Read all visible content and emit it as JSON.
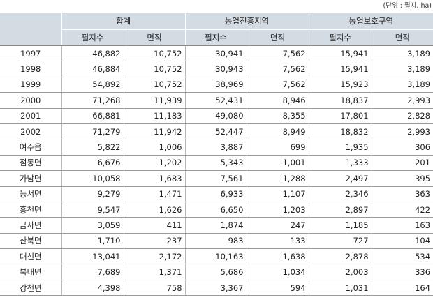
{
  "unit": "(단위 : 필지, ha)",
  "header": {
    "groups": [
      "합계",
      "농업진흥지역",
      "농업보호구역"
    ],
    "sub": [
      "필지수",
      "면적",
      "필지수",
      "면적",
      "필지수",
      "면적"
    ]
  },
  "rows": [
    {
      "label": "1997",
      "values": [
        "46,882",
        "10,752",
        "30,941",
        "7,562",
        "15,941",
        "3,189"
      ]
    },
    {
      "label": "1998",
      "values": [
        "46,884",
        "10,752",
        "30,943",
        "7,562",
        "15,941",
        "3,189"
      ]
    },
    {
      "label": "1999",
      "values": [
        "54,892",
        "10,752",
        "38,969",
        "7,562",
        "15,923",
        "3,189"
      ]
    },
    {
      "label": "2000",
      "values": [
        "71,268",
        "11,939",
        "52,431",
        "8,946",
        "18,837",
        "2,993"
      ]
    },
    {
      "label": "2001",
      "values": [
        "66,881",
        "11,183",
        "49,080",
        "8,355",
        "17,801",
        "2,828"
      ]
    },
    {
      "label": "2002",
      "values": [
        "71,279",
        "11,942",
        "52,447",
        "8,949",
        "18,832",
        "2,993"
      ]
    },
    {
      "label": "여주읍",
      "values": [
        "5,822",
        "1,006",
        "3,887",
        "699",
        "1,935",
        "306"
      ]
    },
    {
      "label": "점동면",
      "values": [
        "6,676",
        "1,202",
        "5,343",
        "1,001",
        "1,333",
        "201"
      ]
    },
    {
      "label": "가남면",
      "values": [
        "10,058",
        "1,683",
        "7,561",
        "1,288",
        "2,497",
        "395"
      ]
    },
    {
      "label": "능서면",
      "values": [
        "9,279",
        "1,471",
        "6,933",
        "1,107",
        "2,346",
        "363"
      ]
    },
    {
      "label": "흥천면",
      "values": [
        "9,547",
        "1,626",
        "6,650",
        "1,203",
        "2,897",
        "422"
      ]
    },
    {
      "label": "금사면",
      "values": [
        "3,059",
        "411",
        "1,874",
        "247",
        "1,185",
        "163"
      ]
    },
    {
      "label": "산북면",
      "values": [
        "1,710",
        "237",
        "983",
        "133",
        "727",
        "104"
      ]
    },
    {
      "label": "대신면",
      "values": [
        "13,041",
        "2,172",
        "10,163",
        "1,638",
        "2,878",
        "534"
      ]
    },
    {
      "label": "북내면",
      "values": [
        "7,689",
        "1,371",
        "5,686",
        "1,034",
        "2,003",
        "336"
      ]
    },
    {
      "label": "강천면",
      "values": [
        "4,398",
        "758",
        "3,367",
        "594",
        "1,031",
        "164"
      ]
    }
  ]
}
